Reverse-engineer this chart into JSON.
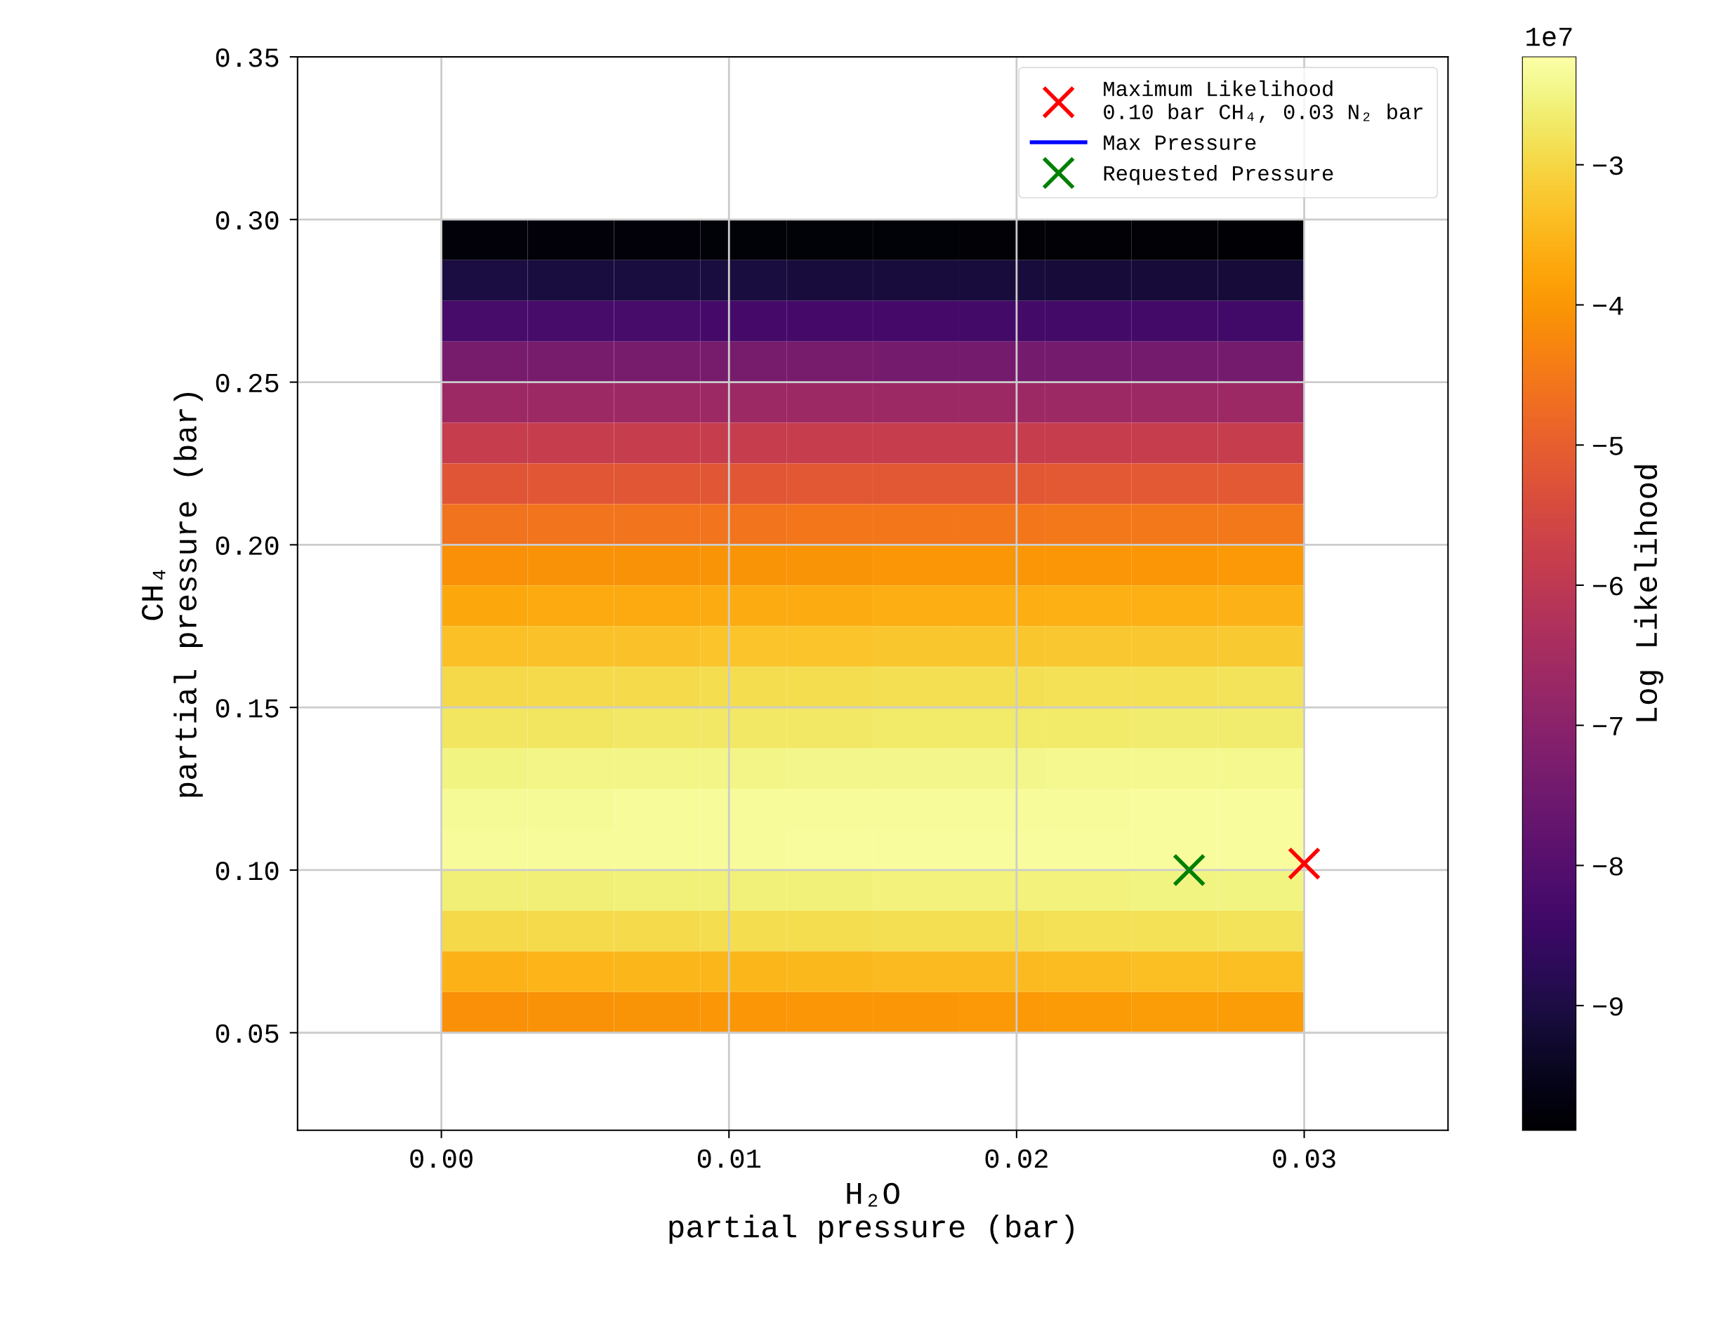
{
  "chart_data": [
    {
      "type": "heatmap",
      "categories": [
        null,
        null,
        null,
        null,
        null,
        null,
        null,
        null,
        null,
        null
      ],
      "y_categories": [
        null,
        null,
        null,
        null,
        null,
        null,
        null,
        null,
        null,
        null,
        null,
        null,
        null,
        null,
        null,
        null,
        null,
        null,
        null,
        null
      ],
      "cells": [
        [
          -9.75,
          -9.76,
          -9.77,
          -9.78,
          -9.79,
          -9.8,
          -9.81,
          -9.82,
          -9.83,
          -9.84
        ],
        [
          -9.05,
          -9.06,
          -9.07,
          -9.08,
          -9.09,
          -9.1,
          -9.11,
          -9.12,
          -9.13,
          -9.14
        ],
        [
          -8.25,
          -8.26,
          -8.27,
          -8.28,
          -8.29,
          -8.3,
          -8.31,
          -8.32,
          -8.33,
          -8.34
        ],
        [
          -7.35,
          -7.36,
          -7.36,
          -7.37,
          -7.37,
          -7.38,
          -7.38,
          -7.39,
          -7.39,
          -7.4
        ],
        [
          -6.65,
          -6.65,
          -6.65,
          -6.65,
          -6.65,
          -6.65,
          -6.65,
          -6.65,
          -6.65,
          -6.65
        ],
        [
          -5.85,
          -5.85,
          -5.85,
          -5.85,
          -5.85,
          -5.85,
          -5.85,
          -5.85,
          -5.85,
          -5.85
        ],
        [
          -5.2,
          -5.19,
          -5.18,
          -5.17,
          -5.16,
          -5.15,
          -5.14,
          -5.13,
          -5.12,
          -5.11
        ],
        [
          -4.6,
          -4.59,
          -4.58,
          -4.57,
          -4.56,
          -4.55,
          -4.54,
          -4.53,
          -4.52,
          -4.51
        ],
        [
          -4.1,
          -4.08,
          -4.07,
          -4.05,
          -4.04,
          -4.02,
          -4.01,
          -3.99,
          -3.98,
          -3.96
        ],
        [
          -3.7,
          -3.68,
          -3.67,
          -3.65,
          -3.64,
          -3.62,
          -3.61,
          -3.59,
          -3.58,
          -3.56
        ],
        [
          -3.35,
          -3.33,
          -3.32,
          -3.3,
          -3.29,
          -3.27,
          -3.26,
          -3.24,
          -3.23,
          -3.21
        ],
        [
          -2.95,
          -2.93,
          -2.92,
          -2.9,
          -2.89,
          -2.87,
          -2.86,
          -2.84,
          -2.83,
          -2.81
        ],
        [
          -2.75,
          -2.74,
          -2.73,
          -2.72,
          -2.71,
          -2.7,
          -2.69,
          -2.68,
          -2.67,
          -2.66
        ],
        [
          -2.5,
          -2.49,
          -2.48,
          -2.47,
          -2.46,
          -2.45,
          -2.44,
          -2.43,
          -2.42,
          -2.41
        ],
        [
          -2.35,
          -2.35,
          -2.34,
          -2.34,
          -2.33,
          -2.33,
          -2.32,
          -2.32,
          -2.31,
          -2.31
        ],
        [
          -2.33,
          -2.33,
          -2.32,
          -2.32,
          -2.31,
          -2.31,
          -2.3,
          -2.3,
          -2.29,
          -2.29
        ],
        [
          -2.6,
          -2.59,
          -2.58,
          -2.57,
          -2.56,
          -2.55,
          -2.54,
          -2.53,
          -2.52,
          -2.51
        ],
        [
          -2.95,
          -2.93,
          -2.92,
          -2.9,
          -2.89,
          -2.87,
          -2.86,
          -2.84,
          -2.83,
          -2.81
        ],
        [
          -3.55,
          -3.53,
          -3.51,
          -3.49,
          -3.47,
          -3.45,
          -3.43,
          -3.41,
          -3.39,
          -3.37
        ],
        [
          -4.1,
          -4.08,
          -4.05,
          -4.02,
          -4.0,
          -3.98,
          -3.95,
          -3.92,
          -3.9,
          -3.88
        ]
      ],
      "clim": [
        -9.89,
        -2.23
      ],
      "cticks": [
        {
          "value": -9,
          "label": "−9"
        },
        {
          "value": -8,
          "label": "−8"
        },
        {
          "value": -7,
          "label": "−7"
        },
        {
          "value": -6,
          "label": "−6"
        },
        {
          "value": -5,
          "label": "−5"
        },
        {
          "value": -4,
          "label": "−4"
        },
        {
          "value": -3,
          "label": "−3"
        }
      ],
      "clabel": "Log Likelihood",
      "annotations": [
        "1e7"
      ]
    },
    {
      "type": "scatter",
      "xlabel": "H₂O\npartial pressure (bar)",
      "ylabel": "CH₄\npartial pressure (bar)",
      "xlim": [
        -0.005,
        0.035
      ],
      "ylim": [
        0.02,
        0.35
      ],
      "xticks": [
        {
          "value": 0.0,
          "label": "0.00"
        },
        {
          "value": 0.01,
          "label": "0.01"
        },
        {
          "value": 0.02,
          "label": "0.02"
        },
        {
          "value": 0.03,
          "label": "0.03"
        }
      ],
      "yticks": [
        {
          "value": 0.05,
          "label": "0.05"
        },
        {
          "value": 0.1,
          "label": "0.10"
        },
        {
          "value": 0.15,
          "label": "0.15"
        },
        {
          "value": 0.2,
          "label": "0.20"
        },
        {
          "value": 0.25,
          "label": "0.25"
        },
        {
          "value": 0.3,
          "label": "0.30"
        },
        {
          "value": 0.35,
          "label": "0.35"
        }
      ],
      "grid": true,
      "legend": "top right",
      "series": [
        {
          "type": "scatter",
          "name": "Maximum Likelihood\n0.10 bar CH₄, 0.03 N₂ bar",
          "color": "#ff0000",
          "marker": "cross",
          "x": [
            0.03
          ],
          "values": [
            0.102
          ]
        },
        {
          "type": "line",
          "name": "Max Pressure",
          "color": "#0000ff"
        },
        {
          "type": "scatter",
          "name": "Requested Pressure",
          "color": "#008000",
          "marker": "cross",
          "x": [
            0.026
          ],
          "values": [
            0.1
          ]
        }
      ]
    }
  ]
}
